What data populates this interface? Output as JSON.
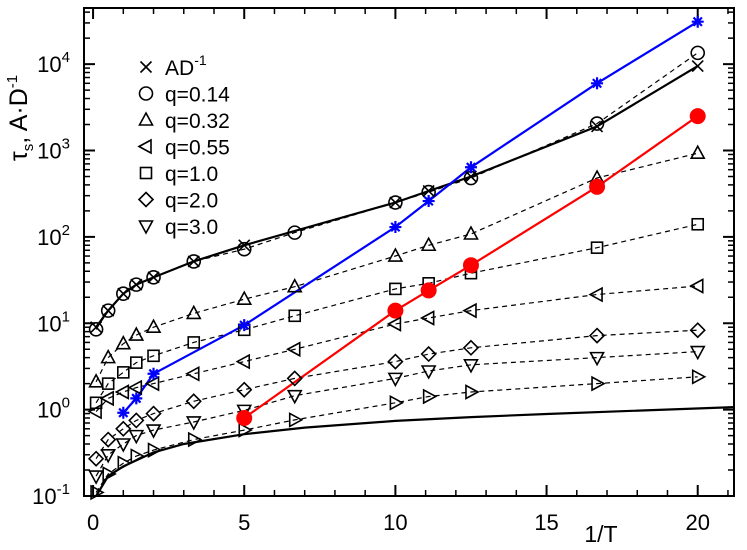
{
  "chart_data": {
    "type": "scatter",
    "title": "",
    "xlabel": "1/T",
    "ylabel_main": "τ",
    "ylabel_sub": "s",
    "ylabel_suffix": ", A·D",
    "ylabel_sup": "-1",
    "xlim": [
      -0.3,
      21.2
    ],
    "ylim_log10": [
      -1,
      4.65
    ],
    "yscale": "log",
    "x_ticks": [
      {
        "value": 0,
        "label": "0"
      },
      {
        "value": 5,
        "label": "5"
      },
      {
        "value": 10,
        "label": "10"
      },
      {
        "value": 15,
        "label": "15"
      },
      {
        "value": 20,
        "label": "20"
      }
    ],
    "y_ticks": [
      {
        "exp": -1,
        "label_base": "10",
        "label_exp": "-1"
      },
      {
        "exp": 0,
        "label_base": "10",
        "label_exp": "0"
      },
      {
        "exp": 1,
        "label_base": "10",
        "label_exp": "1"
      },
      {
        "exp": 2,
        "label_base": "10",
        "label_exp": "2"
      },
      {
        "exp": 3,
        "label_base": "10",
        "label_exp": "3"
      },
      {
        "exp": 4,
        "label_base": "10",
        "label_exp": "4"
      }
    ],
    "legend_position": "top-left",
    "legend": [
      {
        "marker": "x",
        "label": "AD",
        "sup": "-1"
      },
      {
        "marker": "circle",
        "label": "q=0.14",
        "sup": ""
      },
      {
        "marker": "triangle-up",
        "label": "q=0.32",
        "sup": ""
      },
      {
        "marker": "triangle-left",
        "label": "q=0.55",
        "sup": ""
      },
      {
        "marker": "square",
        "label": "q=1.0",
        "sup": ""
      },
      {
        "marker": "diamond",
        "label": "q=2.0",
        "sup": ""
      },
      {
        "marker": "triangle-down",
        "label": "q=3.0",
        "sup": ""
      }
    ],
    "series": [
      {
        "name": "AD-1",
        "marker": "x",
        "line": "solid",
        "color": "#000000",
        "x": [
          0.1,
          0.5,
          1.0,
          1.43,
          2.0,
          3.33,
          5.0,
          10.0,
          11.1,
          12.5,
          16.67,
          20.0
        ],
        "y": [
          9,
          14,
          22,
          28,
          34,
          52,
          80,
          250,
          340,
          500,
          1900,
          9500
        ]
      },
      {
        "name": "q=0.14",
        "marker": "circle",
        "line": "dashed",
        "color": "#000000",
        "x": [
          0.1,
          0.5,
          1.0,
          1.43,
          2.0,
          3.33,
          5.0,
          6.67,
          10.0,
          11.1,
          12.5,
          16.67,
          20.0
        ],
        "y": [
          8.5,
          14,
          22,
          28,
          34,
          52,
          72,
          112,
          250,
          330,
          480,
          2050,
          13500
        ]
      },
      {
        "name": "q=0.32",
        "marker": "triangle-up",
        "line": "dashed",
        "color": "#000000",
        "x": [
          0.1,
          0.5,
          1.0,
          1.43,
          2.0,
          3.33,
          5.0,
          6.67,
          10.0,
          11.1,
          12.5,
          16.67,
          20.0
        ],
        "y": [
          2.1,
          4.0,
          5.8,
          7.3,
          9.0,
          13,
          19,
          26.5,
          60,
          80,
          108,
          480,
          930
        ]
      },
      {
        "name": "q=0.55",
        "marker": "triangle-left",
        "line": "dashed",
        "color": "#000000",
        "x": [
          0.1,
          0.5,
          1.0,
          1.43,
          2.0,
          3.33,
          5.0,
          6.67,
          10.0,
          11.1,
          12.5,
          16.67,
          20.0
        ],
        "y": [
          0.95,
          1.35,
          1.6,
          1.8,
          2.0,
          2.6,
          3.6,
          5.0,
          9.8,
          11.5,
          14.0,
          21.5,
          27
        ]
      },
      {
        "name": "q=1.0",
        "marker": "square",
        "line": "dashed",
        "color": "#000000",
        "x": [
          0.1,
          0.5,
          1.0,
          1.43,
          2.0,
          3.33,
          5.0,
          6.67,
          10.0,
          11.1,
          12.5,
          16.67,
          20.0
        ],
        "y": [
          1.2,
          2.0,
          2.7,
          3.5,
          4.2,
          6.0,
          8.4,
          12.2,
          25,
          29,
          38,
          75,
          140
        ]
      },
      {
        "name": "q=2.0",
        "marker": "diamond",
        "line": "dashed",
        "color": "#000000",
        "x": [
          0.1,
          0.5,
          1.0,
          1.43,
          2.0,
          3.33,
          5.0,
          6.67,
          10.0,
          11.1,
          12.5,
          16.67,
          20.0
        ],
        "y": [
          0.27,
          0.45,
          0.6,
          0.75,
          0.9,
          1.25,
          1.7,
          2.3,
          3.6,
          4.4,
          5.2,
          7.2,
          8.3
        ]
      },
      {
        "name": "q=3.0",
        "marker": "triangle-down",
        "line": "dashed",
        "color": "#000000",
        "x": [
          0.1,
          0.5,
          1.0,
          1.43,
          2.0,
          3.33,
          5.0,
          6.67,
          10.0,
          11.1,
          12.5,
          16.67,
          20.0
        ],
        "y": [
          0.17,
          0.3,
          0.4,
          0.5,
          0.58,
          0.72,
          0.98,
          1.45,
          2.3,
          2.8,
          3.3,
          4.0,
          4.7
        ]
      },
      {
        "name": "unlabeled (right-pointing triangles)",
        "marker": "triangle-right",
        "line": "dashed",
        "color": "#000000",
        "x": [
          0.1,
          0.5,
          1.0,
          1.43,
          2.0,
          3.33,
          5.0,
          6.67,
          10.0,
          11.1,
          12.5,
          16.67,
          20.0
        ],
        "y": [
          0.11,
          0.18,
          0.24,
          0.29,
          0.34,
          0.45,
          0.58,
          0.76,
          1.2,
          1.42,
          1.6,
          2.0,
          2.4
        ]
      },
      {
        "name": "blue asterisk line",
        "marker": "asterisk",
        "line": "solid",
        "color": "#0000ff",
        "x": [
          1.0,
          1.43,
          2.0,
          5.0,
          10.0,
          11.1,
          12.5,
          16.67,
          20.0
        ],
        "y": [
          0.92,
          1.35,
          2.6,
          9.5,
          130,
          260,
          640,
          6000,
          31000
        ]
      },
      {
        "name": "red filled circles line",
        "marker": "filled-circle",
        "line": "solid",
        "color": "#ff0000",
        "x": [
          5.0,
          10.0,
          11.1,
          12.5,
          16.67,
          20.0
        ],
        "y": [
          0.8,
          14,
          24,
          47,
          380,
          2500
        ]
      },
      {
        "name": "black solid curve",
        "marker": "none",
        "line": "solid",
        "color": "#000000",
        "x": [
          0.1,
          0.5,
          1.0,
          2.0,
          3.0,
          5.0,
          7.0,
          10.0,
          12.5,
          15.0,
          17.5,
          21.2
        ],
        "y": [
          0.1,
          0.17,
          0.22,
          0.32,
          0.4,
          0.52,
          0.62,
          0.74,
          0.82,
          0.89,
          0.96,
          1.07
        ]
      }
    ]
  }
}
